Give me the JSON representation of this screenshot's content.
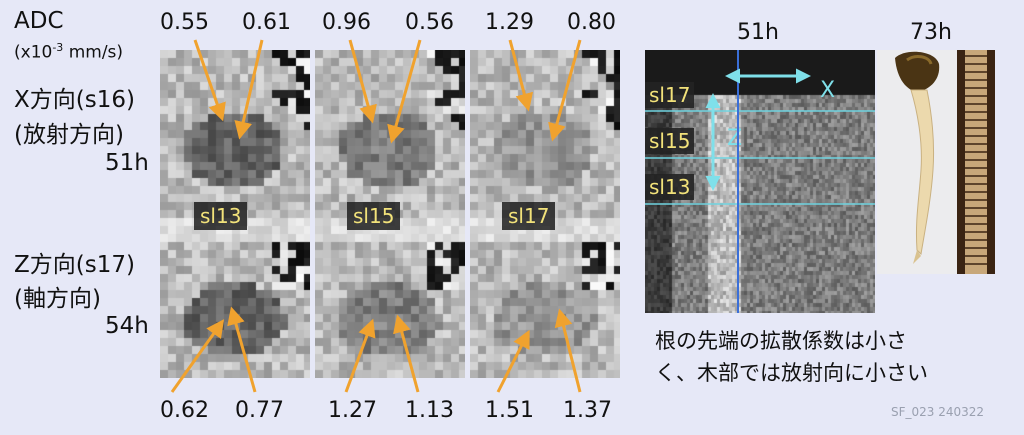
{
  "left_labels": {
    "adc": "ADC",
    "units_pre": "(x10",
    "units_exp": "-3",
    "units_post": " mm/s)",
    "x_dir": "X方向(s16)",
    "x_sub": "(放射方向)",
    "x_time": "51h",
    "z_dir": "Z方向(s17)",
    "z_sub": "(軸方向)",
    "z_time": "54h"
  },
  "panels": [
    {
      "slice": "sl13",
      "top_left": "0.55",
      "top_right": "0.61",
      "bottom_left": "0.62",
      "bottom_right": "0.77"
    },
    {
      "slice": "sl15",
      "top_left": "0.96",
      "top_right": "0.56",
      "bottom_left": "1.27",
      "bottom_right": "1.13"
    },
    {
      "slice": "sl17",
      "top_left": "1.29",
      "top_right": "0.80",
      "bottom_left": "1.51",
      "bottom_right": "1.37"
    }
  ],
  "mri_view": {
    "time": "51h",
    "axis_x": "X",
    "axis_z": "Z",
    "slices": [
      "sl17",
      "sl15",
      "sl13"
    ]
  },
  "photo": {
    "time": "73h"
  },
  "caption": {
    "line1": "根の先端の拡散係数は小さ",
    "line2": "く、木部では放射向に小さい"
  },
  "footer": "SF_023 240322",
  "colors": {
    "background": "#e6e8f7",
    "arrow_orange": "#f0a22e",
    "slice_line": "#6fd3e0",
    "axis_arrow": "#7fe0ea",
    "vertical_line": "#3a6fd8",
    "pill_text": "#f2e27a"
  }
}
